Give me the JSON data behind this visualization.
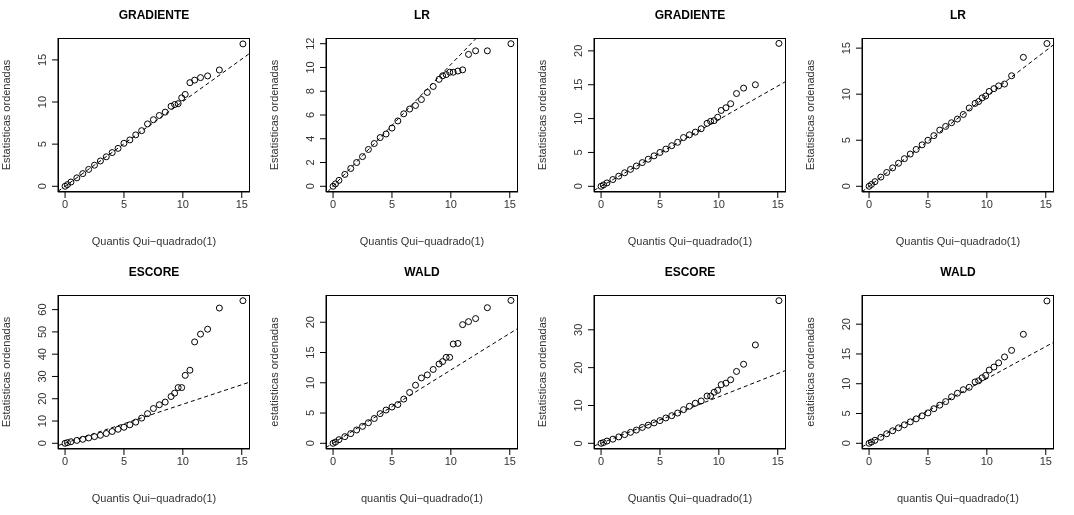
{
  "chart_data": [
    {
      "type": "scatter",
      "title": "GRADIENTE",
      "xlabel": "Quantis Qui−quadrado(1)",
      "ylabel": "Estatisticas ordenadas",
      "marker": "circle",
      "xlim": [
        -0.6,
        15.7
      ],
      "xticks": [
        0,
        5,
        10,
        15
      ],
      "ylim": [
        -0.68,
        17.6
      ],
      "yticks": [
        0,
        5,
        10,
        15
      ],
      "x": [
        0,
        0.2,
        0.5,
        1,
        1.5,
        2,
        2.5,
        3,
        3.5,
        4,
        4.5,
        5,
        5.5,
        6,
        6.5,
        7,
        7.5,
        8,
        8.5,
        9,
        9.3,
        9.6,
        9.9,
        10.2,
        10.6,
        11.0,
        11.5,
        12.1,
        13.1,
        15.1
      ],
      "series": [
        {
          "type": "scatter",
          "color": "#000000",
          "values": [
            0,
            0.2,
            0.5,
            1,
            1.5,
            2,
            2.5,
            3,
            3.5,
            4,
            4.5,
            5.1,
            5.5,
            6.1,
            6.6,
            7.4,
            7.9,
            8.4,
            8.8,
            9.5,
            9.7,
            9.8,
            10.5,
            10.9,
            12.3,
            12.6,
            12.9,
            13.1,
            13.8,
            16.9
          ]
        },
        {
          "type": "line",
          "marker": "none",
          "line_style": "dashed",
          "color": "#000000",
          "x": [
            -0.6,
            15.7
          ],
          "values": [
            -0.6,
            15.8
          ]
        }
      ]
    },
    {
      "type": "scatter",
      "title": "LR",
      "xlabel": "Quantis Qui−quadrado(1)",
      "ylabel": "Estatisticas ordenadas",
      "marker": "circle",
      "xlim": [
        -0.6,
        15.7
      ],
      "xticks": [
        0,
        5,
        10,
        15
      ],
      "ylim": [
        -0.48,
        12.48
      ],
      "yticks": [
        0,
        2,
        4,
        6,
        8,
        10,
        12
      ],
      "x": [
        0,
        0.2,
        0.5,
        1,
        1.5,
        2,
        2.5,
        3,
        3.5,
        4,
        4.5,
        5,
        5.5,
        6,
        6.5,
        7,
        7.5,
        8,
        8.5,
        9,
        9.3,
        9.6,
        9.9,
        10.2,
        10.6,
        11.0,
        11.5,
        12.1,
        13.1,
        15.1
      ],
      "series": [
        {
          "type": "scatter",
          "color": "#000000",
          "values": [
            0,
            0.2,
            0.5,
            1,
            1.5,
            2,
            2.5,
            3.1,
            3.6,
            4.1,
            4.4,
            4.9,
            5.5,
            6.1,
            6.5,
            6.8,
            7.3,
            7.9,
            8.4,
            9.0,
            9.3,
            9.4,
            9.6,
            9.6,
            9.7,
            9.8,
            11.1,
            11.4,
            11.4,
            12.0
          ]
        },
        {
          "type": "line",
          "marker": "none",
          "line_style": "dashed",
          "color": "#000000",
          "x": [
            -0.45,
            12.1
          ],
          "values": [
            -0.45,
            12.4
          ]
        }
      ]
    },
    {
      "type": "scatter",
      "title": "GRADIENTE",
      "xlabel": "Quantis Qui−quadrado(1)",
      "ylabel": "Estatisticas ordenadas",
      "marker": "circle",
      "xlim": [
        -0.6,
        15.7
      ],
      "xticks": [
        0,
        5,
        10,
        15
      ],
      "ylim": [
        -0.84,
        21.9
      ],
      "yticks": [
        0,
        5,
        10,
        15,
        20
      ],
      "x": [
        0,
        0.2,
        0.5,
        1,
        1.5,
        2,
        2.5,
        3,
        3.5,
        4,
        4.5,
        5,
        5.5,
        6,
        6.5,
        7,
        7.5,
        8,
        8.5,
        9,
        9.3,
        9.6,
        9.9,
        10.2,
        10.6,
        11.0,
        11.5,
        12.1,
        13.1,
        15.1
      ],
      "series": [
        {
          "type": "scatter",
          "color": "#000000",
          "values": [
            0,
            0.2,
            0.5,
            1,
            1.5,
            2,
            2.5,
            3,
            3.5,
            4,
            4.5,
            5,
            5.5,
            6,
            6.5,
            7.2,
            7.6,
            8.0,
            8.5,
            9.3,
            9.6,
            9.7,
            10.2,
            11.2,
            11.6,
            12.2,
            13.7,
            14.5,
            15.0,
            21.1
          ]
        },
        {
          "type": "line",
          "marker": "none",
          "line_style": "dashed",
          "color": "#000000",
          "x": [
            -0.6,
            15.7
          ],
          "values": [
            -0.6,
            15.5
          ]
        }
      ]
    },
    {
      "type": "scatter",
      "title": "LR",
      "xlabel": "Quantis Qui−quadrado(1)",
      "ylabel": "Estatisticas ordenadas",
      "marker": "circle",
      "xlim": [
        -0.6,
        15.7
      ],
      "xticks": [
        0,
        5,
        10,
        15
      ],
      "ylim": [
        -0.62,
        16.1
      ],
      "yticks": [
        0,
        5,
        10,
        15
      ],
      "x": [
        0,
        0.2,
        0.5,
        1,
        1.5,
        2,
        2.5,
        3,
        3.5,
        4,
        4.5,
        5,
        5.5,
        6,
        6.5,
        7,
        7.5,
        8,
        8.5,
        9,
        9.3,
        9.6,
        9.9,
        10.2,
        10.6,
        11.0,
        11.5,
        12.1,
        13.1,
        15.1
      ],
      "series": [
        {
          "type": "scatter",
          "color": "#000000",
          "values": [
            0,
            0.2,
            0.5,
            1,
            1.5,
            2,
            2.5,
            3,
            3.5,
            4,
            4.5,
            5,
            5.5,
            6.1,
            6.5,
            6.9,
            7.3,
            7.8,
            8.5,
            9.0,
            9.2,
            9.6,
            9.8,
            10.3,
            10.6,
            10.9,
            11.1,
            12.0,
            14.0,
            15.5
          ]
        },
        {
          "type": "line",
          "marker": "none",
          "line_style": "dashed",
          "color": "#000000",
          "x": [
            -0.6,
            15.7
          ],
          "values": [
            -0.6,
            15.4
          ]
        }
      ]
    },
    {
      "type": "scatter",
      "title": "ESCORE",
      "xlabel": "Quantis Qui−quadrado(1)",
      "ylabel": "Estatisticas ordenadas",
      "marker": "circle",
      "xlim": [
        -0.6,
        15.7
      ],
      "xticks": [
        0,
        5,
        10,
        15
      ],
      "ylim": [
        -2.56,
        66.56
      ],
      "yticks": [
        0,
        10,
        20,
        30,
        40,
        50,
        60
      ],
      "x": [
        0,
        0.2,
        0.5,
        1,
        1.5,
        2,
        2.5,
        3,
        3.5,
        4,
        4.5,
        5,
        5.5,
        6,
        6.5,
        7,
        7.5,
        8,
        8.5,
        9,
        9.3,
        9.6,
        9.9,
        10.2,
        10.6,
        11.0,
        11.5,
        12.1,
        13.1,
        15.1
      ],
      "series": [
        {
          "type": "scatter",
          "color": "#000000",
          "values": [
            0,
            0.3,
            0.7,
            1.3,
            1.8,
            2.4,
            3,
            3.6,
            4.4,
            5.3,
            6.3,
            7.2,
            8.3,
            9.5,
            11.3,
            13.3,
            15.6,
            17.3,
            18.5,
            21,
            22.5,
            25,
            25,
            30.5,
            32.8,
            45.5,
            49,
            51.2,
            60.7,
            64
          ]
        },
        {
          "type": "line",
          "marker": "none",
          "line_style": "dashed",
          "color": "#000000",
          "x": [
            -0.6,
            15.7
          ],
          "values": [
            -1.0,
            27.5
          ]
        }
      ]
    },
    {
      "type": "scatter",
      "title": "WALD",
      "xlabel": "quantis Qui−quadrado(1)",
      "ylabel": "estatisticas ordenadas",
      "marker": "circle",
      "xlim": [
        -0.6,
        15.7
      ],
      "xticks": [
        0,
        5,
        10,
        15
      ],
      "ylim": [
        -0.94,
        24.5
      ],
      "yticks": [
        0,
        5,
        10,
        15,
        20
      ],
      "x": [
        0,
        0.2,
        0.5,
        1,
        1.5,
        2,
        2.5,
        3,
        3.5,
        4,
        4.5,
        5,
        5.5,
        6,
        6.5,
        7,
        7.5,
        8,
        8.5,
        9,
        9.3,
        9.6,
        9.9,
        10.2,
        10.6,
        11.0,
        11.5,
        12.1,
        13.1,
        15.1
      ],
      "series": [
        {
          "type": "scatter",
          "color": "#000000",
          "values": [
            0,
            0.2,
            0.6,
            1.1,
            1.6,
            2.2,
            2.8,
            3.4,
            4.1,
            4.9,
            5.5,
            6.0,
            6.4,
            7.3,
            8.4,
            9.6,
            10.8,
            11.3,
            12.2,
            13.1,
            13.5,
            14.2,
            14.2,
            16.4,
            16.5,
            19.6,
            20.1,
            20.6,
            22.4,
            23.6
          ]
        },
        {
          "type": "line",
          "marker": "none",
          "line_style": "dashed",
          "color": "#000000",
          "x": [
            -0.6,
            15.7
          ],
          "values": [
            -0.7,
            19.0
          ]
        }
      ]
    },
    {
      "type": "scatter",
      "title": "ESCORE",
      "xlabel": "Quantis Qui−quadrado(1)",
      "ylabel": "Estatisticas ordenadas",
      "marker": "circle",
      "xlim": [
        -0.6,
        15.7
      ],
      "xticks": [
        0,
        5,
        10,
        15
      ],
      "ylim": [
        -1.5,
        39.2
      ],
      "yticks": [
        0,
        10,
        20,
        30
      ],
      "x": [
        0,
        0.2,
        0.5,
        1,
        1.5,
        2,
        2.5,
        3,
        3.5,
        4,
        4.5,
        5,
        5.5,
        6,
        6.5,
        7,
        7.5,
        8,
        8.5,
        9,
        9.3,
        9.6,
        9.9,
        10.2,
        10.6,
        11.0,
        11.5,
        12.1,
        13.1,
        15.1
      ],
      "series": [
        {
          "type": "scatter",
          "color": "#000000",
          "values": [
            0,
            0.2,
            0.6,
            1.1,
            1.7,
            2.3,
            2.9,
            3.5,
            4.2,
            4.8,
            5.4,
            6.0,
            6.7,
            7.3,
            8.0,
            8.9,
            9.8,
            10.6,
            11.2,
            12.5,
            12.5,
            13.5,
            14.0,
            15.5,
            15.9,
            16.8,
            19.0,
            20.9,
            26.0,
            37.7
          ]
        },
        {
          "type": "line",
          "marker": "none",
          "line_style": "dashed",
          "color": "#000000",
          "x": [
            -0.6,
            15.7
          ],
          "values": [
            -0.7,
            19.3
          ]
        }
      ]
    },
    {
      "type": "scatter",
      "title": "WALD",
      "xlabel": "quantis Qui−quadrado(1)",
      "ylabel": "estatisticas ordenadas",
      "marker": "circle",
      "xlim": [
        -0.6,
        15.7
      ],
      "xticks": [
        0,
        5,
        10,
        15
      ],
      "ylim": [
        -0.96,
        24.9
      ],
      "yticks": [
        0,
        5,
        10,
        15,
        20
      ],
      "x": [
        0,
        0.2,
        0.5,
        1,
        1.5,
        2,
        2.5,
        3,
        3.5,
        4,
        4.5,
        5,
        5.5,
        6,
        6.5,
        7,
        7.5,
        8,
        8.5,
        9,
        9.3,
        9.6,
        9.9,
        10.2,
        10.6,
        11.0,
        11.5,
        12.1,
        13.1,
        15.1
      ],
      "series": [
        {
          "type": "scatter",
          "color": "#000000",
          "values": [
            0,
            0.2,
            0.5,
            1.0,
            1.6,
            2.1,
            2.6,
            3.1,
            3.6,
            4.1,
            4.6,
            5.1,
            5.8,
            6.4,
            7.0,
            7.8,
            8.4,
            9.0,
            9.4,
            10.3,
            10.5,
            11.0,
            11.4,
            12.3,
            12.8,
            13.5,
            14.5,
            15.6,
            18.3,
            23.9
          ]
        },
        {
          "type": "line",
          "marker": "none",
          "line_style": "dashed",
          "color": "#000000",
          "x": [
            -0.6,
            15.7
          ],
          "values": [
            -0.6,
            17.0
          ]
        }
      ]
    }
  ]
}
